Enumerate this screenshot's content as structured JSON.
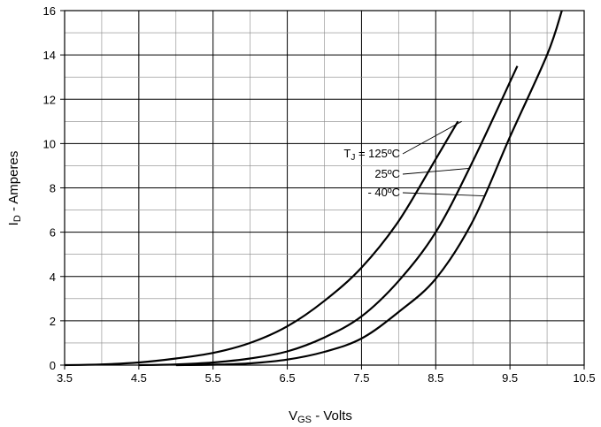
{
  "chart_data": {
    "type": "line",
    "title": "",
    "xlabel": {
      "main": "V",
      "sub": "GS",
      "suffix": " - Volts"
    },
    "ylabel": {
      "main": "I",
      "sub": "D",
      "suffix": " - Amperes"
    },
    "xlim": [
      3.5,
      10.5
    ],
    "ylim": [
      0,
      16
    ],
    "x_ticks": [
      "3.5",
      "4.5",
      "5.5",
      "6.5",
      "7.5",
      "8.5",
      "9.5",
      "10.5"
    ],
    "y_ticks": [
      "0",
      "2",
      "4",
      "6",
      "8",
      "10",
      "12",
      "14",
      "16"
    ],
    "grid": true,
    "series": [
      {
        "name": "125ºC",
        "x": [
          3.5,
          4.0,
          4.5,
          5.0,
          5.5,
          6.0,
          6.5,
          7.0,
          7.5,
          8.0,
          8.5,
          8.8
        ],
        "y": [
          0,
          0.03,
          0.12,
          0.3,
          0.55,
          1.0,
          1.75,
          2.9,
          4.4,
          6.5,
          9.3,
          11.0
        ]
      },
      {
        "name": "25ºC",
        "x": [
          4.5,
          5.0,
          5.5,
          6.0,
          6.5,
          7.0,
          7.5,
          8.0,
          8.5,
          9.0,
          9.6
        ],
        "y": [
          0,
          0.03,
          0.12,
          0.3,
          0.62,
          1.25,
          2.2,
          3.8,
          6.0,
          9.2,
          13.5
        ]
      },
      {
        "name": "- 40ºC",
        "x": [
          5.0,
          5.5,
          6.0,
          6.5,
          7.0,
          7.5,
          8.0,
          8.5,
          9.0,
          9.5,
          10.0,
          10.2
        ],
        "y": [
          0,
          0.02,
          0.08,
          0.25,
          0.6,
          1.2,
          2.4,
          3.9,
          6.5,
          10.3,
          14.0,
          16.0
        ]
      }
    ],
    "annotations": [
      {
        "text_main": "T",
        "text_sub": "J",
        "text_suffix": " = 125ºC"
      },
      {
        "text_main": "25ºC",
        "text_sub": "",
        "text_suffix": ""
      },
      {
        "text_main": "- 40ºC",
        "text_sub": "",
        "text_suffix": ""
      }
    ]
  }
}
